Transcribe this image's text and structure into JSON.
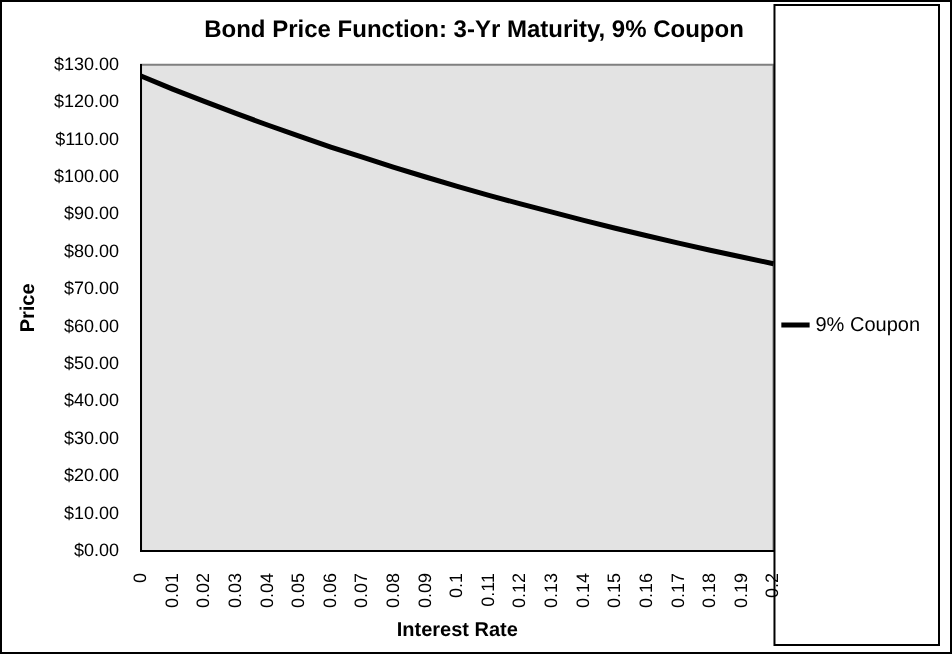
{
  "chart_data": {
    "type": "line",
    "title": "Bond Price Function: 3-Yr Maturity, 9% Coupon",
    "xlabel": "Interest Rate",
    "ylabel": "Price",
    "categories": [
      "0",
      "0.01",
      "0.02",
      "0.03",
      "0.04",
      "0.05",
      "0.06",
      "0.07",
      "0.08",
      "0.09",
      "0.1",
      "0.11",
      "0.12",
      "0.13",
      "0.14",
      "0.15",
      "0.16",
      "0.17",
      "0.18",
      "0.19",
      "0.2"
    ],
    "series": [
      {
        "name": "9% Coupon",
        "color": "#000000",
        "values": [
          127.0,
          123.5,
          120.2,
          117.0,
          113.9,
          110.9,
          108.0,
          105.3,
          102.6,
          100.0,
          97.5,
          95.1,
          92.8,
          90.6,
          88.4,
          86.3,
          84.3,
          82.3,
          80.4,
          78.6,
          76.8
        ]
      }
    ],
    "ylim": [
      0,
      130
    ],
    "yticks": [
      {
        "value": 0,
        "label": "$0.00"
      },
      {
        "value": 10,
        "label": "$10.00"
      },
      {
        "value": 20,
        "label": "$20.00"
      },
      {
        "value": 30,
        "label": "$30.00"
      },
      {
        "value": 40,
        "label": "$40.00"
      },
      {
        "value": 50,
        "label": "$50.00"
      },
      {
        "value": 60,
        "label": "$60.00"
      },
      {
        "value": 70,
        "label": "$70.00"
      },
      {
        "value": 80,
        "label": "$80.00"
      },
      {
        "value": 90,
        "label": "$90.00"
      },
      {
        "value": 100,
        "label": "$100.00"
      },
      {
        "value": 110,
        "label": "$110.00"
      },
      {
        "value": 120,
        "label": "$120.00"
      },
      {
        "value": 130,
        "label": "$130.00"
      }
    ],
    "grid": false,
    "legend": "right",
    "marker": "none",
    "line_style": "solid"
  }
}
